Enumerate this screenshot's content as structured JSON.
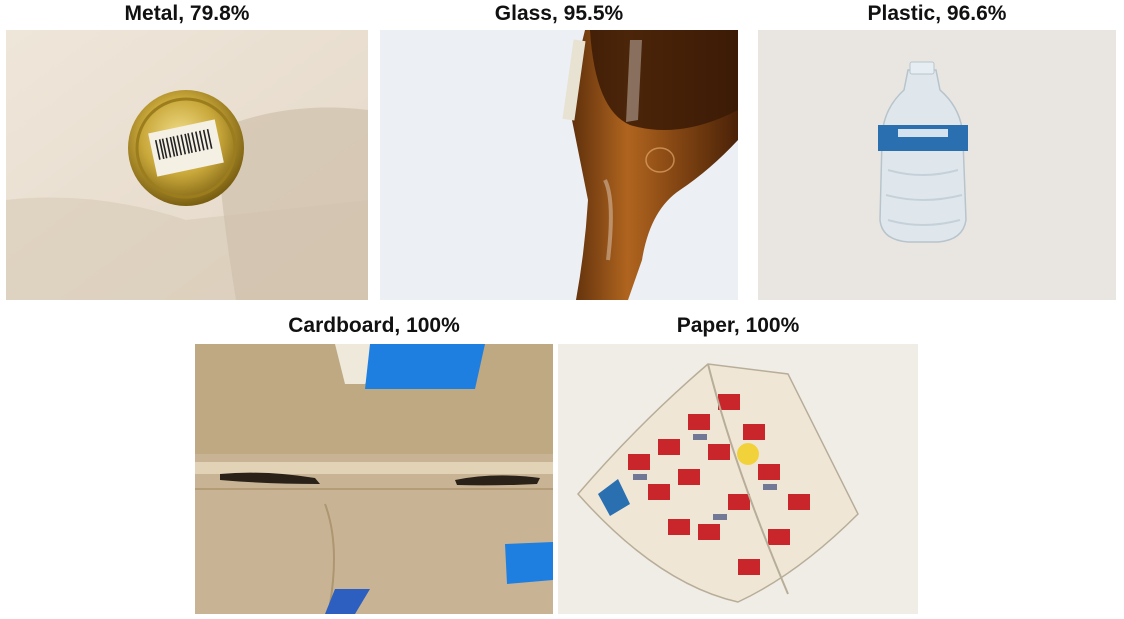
{
  "figure": {
    "panels": [
      {
        "label": "Metal, 79.8%"
      },
      {
        "label": "Glass, 95.5%"
      },
      {
        "label": "Plastic, 96.6%"
      },
      {
        "label": "Cardboard, 100%"
      },
      {
        "label": "Paper, 100%"
      }
    ]
  },
  "colors": {
    "background": "#ffffff",
    "caption_text": "#111111",
    "metal_lid": "#c9a83a",
    "glass_bottle": "#8a4a14",
    "plastic_label": "#2a6fb0",
    "cardboard": "#c8b494",
    "painters_tape": "#1f7fe0",
    "newspaper_ink": "#c8262a"
  }
}
